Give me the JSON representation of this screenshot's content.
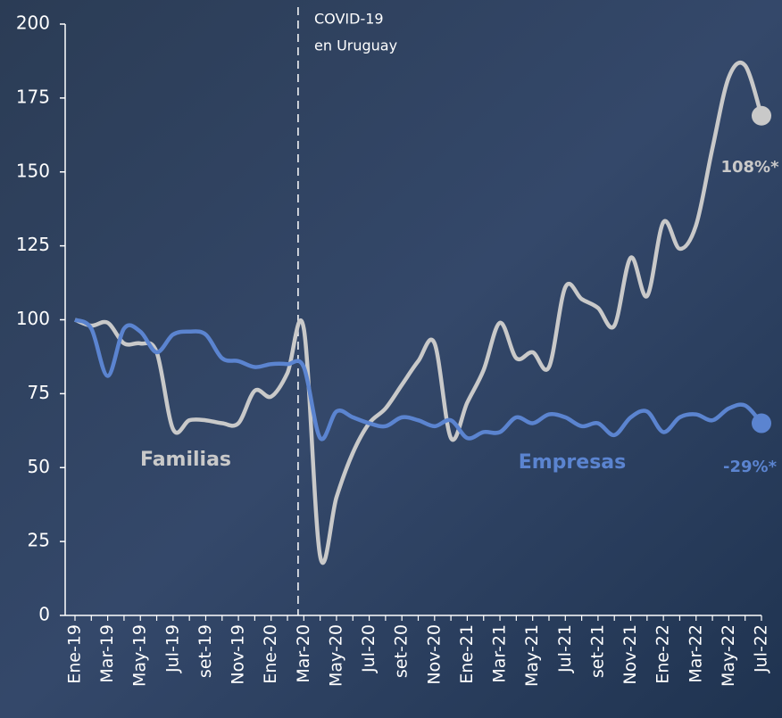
{
  "chart_data": {
    "type": "line",
    "annotations": [
      "COVID-19",
      "en Uruguay"
    ],
    "categories": [
      "Ene-19",
      null,
      "Mar-19",
      null,
      "May-19",
      null,
      "Jul-19",
      null,
      "set-19",
      null,
      "Nov-19",
      null,
      "Ene-20",
      null,
      "Mar-20",
      null,
      "May-20",
      null,
      "Jul-20",
      null,
      "set-20",
      null,
      "Nov-20",
      null,
      "Ene-21",
      null,
      "Mar-21",
      null,
      "May-21",
      null,
      "Jul-21",
      null,
      "set-21",
      null,
      "Nov-21",
      null,
      "Ene-22",
      null,
      "Mar-22",
      null,
      "May-22",
      null,
      "Jul-22"
    ],
    "series": [
      {
        "name": "Familias",
        "color": "#c9c9c9",
        "end_label": "108%*",
        "values": [
          100,
          98,
          99,
          92,
          92,
          89,
          63,
          66,
          66,
          65,
          65,
          76,
          74,
          82,
          97,
          20,
          40,
          55,
          65,
          70,
          78,
          86,
          92,
          60,
          72,
          83,
          99,
          87,
          89,
          84,
          111,
          107,
          104,
          98,
          121,
          108,
          133,
          124,
          132,
          158,
          182,
          186,
          169
        ]
      },
      {
        "name": "Empresas",
        "color": "#5b84d0",
        "end_label": "-29%*",
        "values": [
          100,
          97,
          81,
          97,
          96,
          89,
          95,
          96,
          95,
          87,
          86,
          84,
          85,
          85,
          84,
          60,
          69,
          67,
          65,
          64,
          67,
          66,
          64,
          66,
          60,
          62,
          62,
          67,
          65,
          68,
          67,
          64,
          65,
          61,
          67,
          69,
          62,
          67,
          68,
          66,
          70,
          71,
          65
        ]
      }
    ],
    "ylim": [
      0,
      200
    ],
    "yticks": [
      0,
      25,
      50,
      75,
      100,
      125,
      150,
      175,
      200
    ]
  }
}
